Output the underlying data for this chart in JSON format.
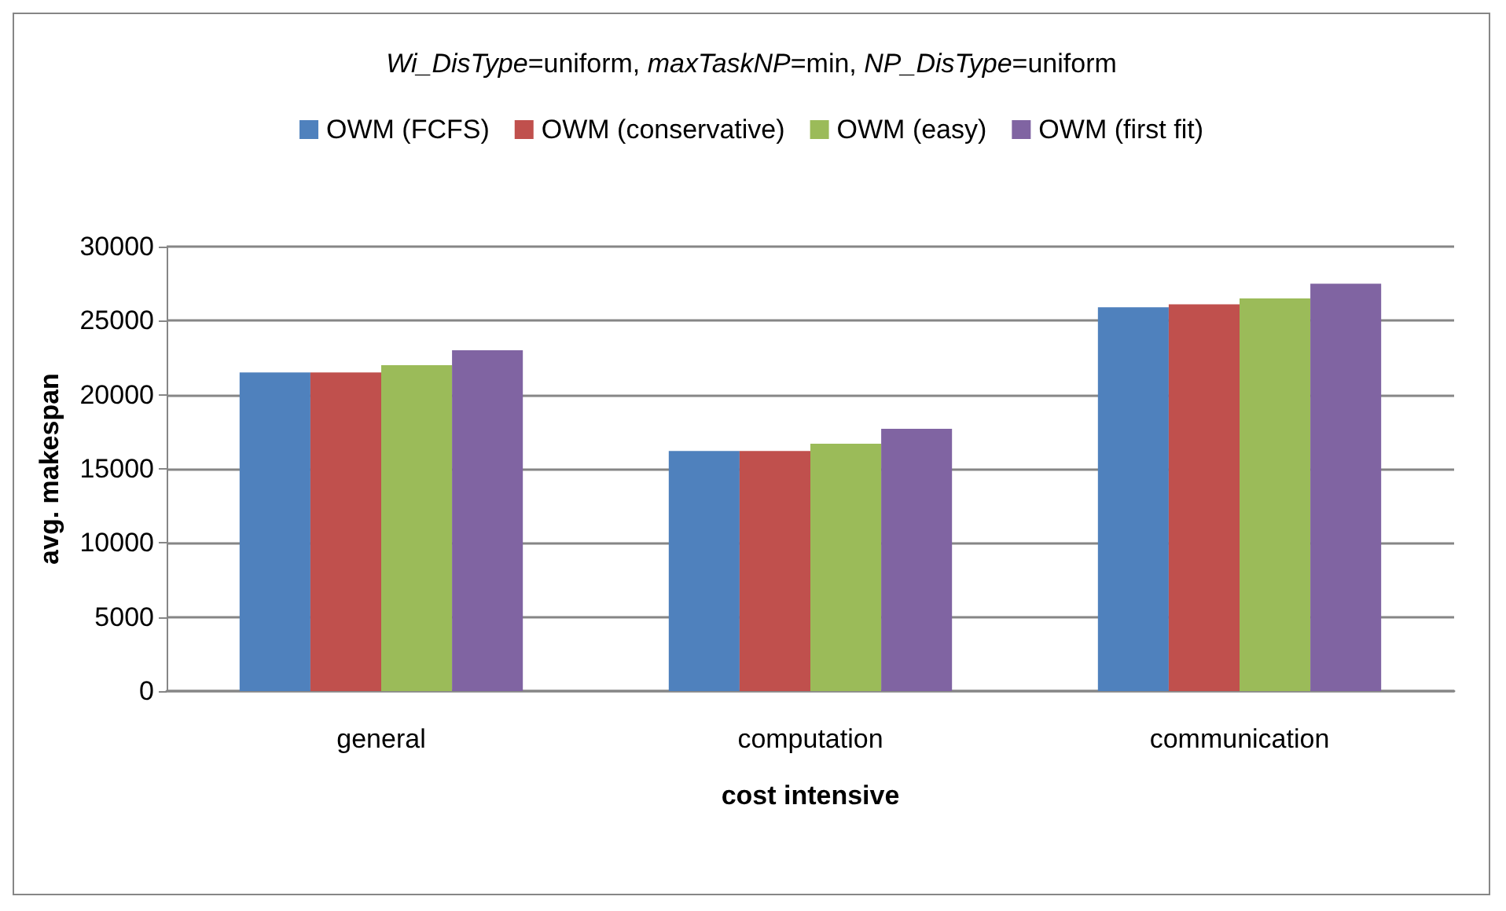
{
  "chart_data": {
    "type": "bar",
    "title": "Wi_DisType=uniform, maxTaskNP=min, NP_DisType=uniform",
    "xlabel": "cost intensive",
    "ylabel": "avg. makespan",
    "categories": [
      "general",
      "computation",
      "communication"
    ],
    "series": [
      {
        "name": "OWM (FCFS)",
        "color": "#4f81bd",
        "values": [
          21500,
          16200,
          25900
        ]
      },
      {
        "name": "OWM (conservative)",
        "color": "#c0504d",
        "values": [
          21500,
          16200,
          26100
        ]
      },
      {
        "name": "OWM (easy)",
        "color": "#9bbb59",
        "values": [
          22000,
          16700,
          26500
        ]
      },
      {
        "name": "OWM (first fit)",
        "color": "#8064a2",
        "values": [
          23000,
          17700,
          27500
        ]
      }
    ],
    "ylim": [
      0,
      30000
    ],
    "yticks": [
      0,
      5000,
      10000,
      15000,
      20000,
      25000,
      30000
    ],
    "grid": "y",
    "legend": "top"
  }
}
